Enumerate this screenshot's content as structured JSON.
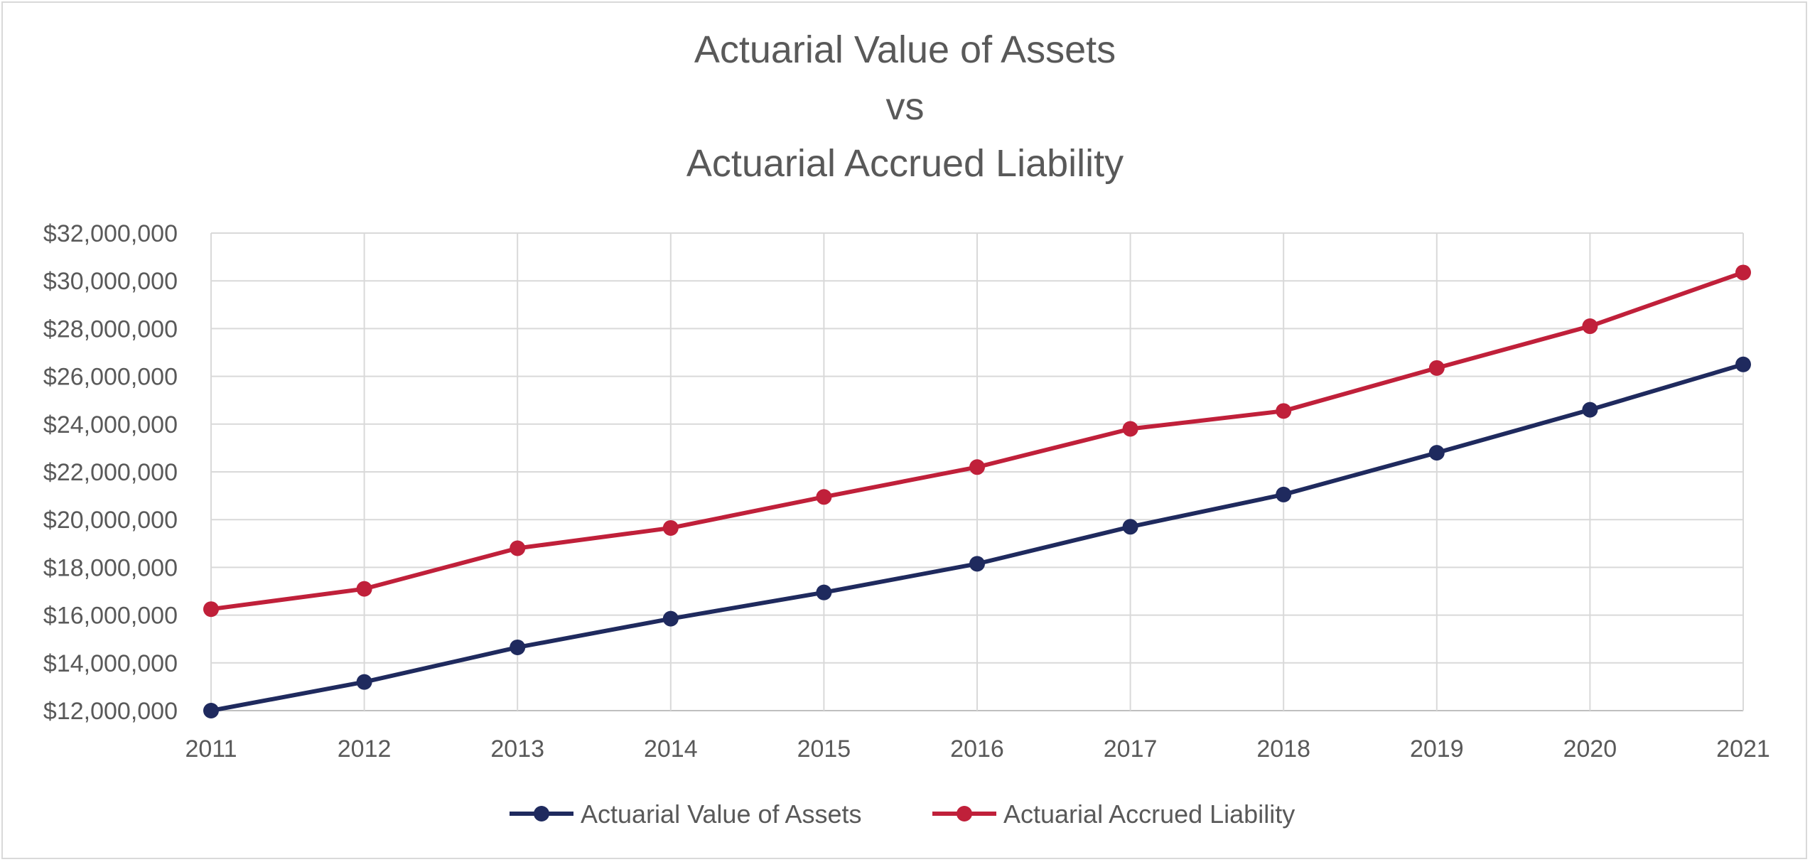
{
  "chart_data": {
    "type": "line",
    "title_lines": [
      "Actuarial Value of Assets",
      "vs",
      "Actuarial Accrued Liability"
    ],
    "x": [
      "2011",
      "2012",
      "2013",
      "2014",
      "2015",
      "2016",
      "2017",
      "2018",
      "2019",
      "2020",
      "2021"
    ],
    "y_ticks": [
      "$12,000,000",
      "$14,000,000",
      "$16,000,000",
      "$18,000,000",
      "$20,000,000",
      "$22,000,000",
      "$24,000,000",
      "$26,000,000",
      "$28,000,000",
      "$30,000,000",
      "$32,000,000"
    ],
    "ylim": [
      12000000,
      32000000
    ],
    "grid": true,
    "legend_position": "bottom",
    "series": [
      {
        "name": "Actuarial Value of Assets",
        "color": "#1f2a5e",
        "values": [
          12000000,
          13200000,
          14650000,
          15850000,
          16950000,
          18150000,
          19700000,
          21050000,
          22800000,
          24600000,
          26500000
        ]
      },
      {
        "name": "Actuarial Accrued Liability",
        "color": "#c0203a",
        "values": [
          16250000,
          17100000,
          18800000,
          19650000,
          20950000,
          22200000,
          23800000,
          24550000,
          26350000,
          28100000,
          30350000
        ]
      }
    ]
  }
}
